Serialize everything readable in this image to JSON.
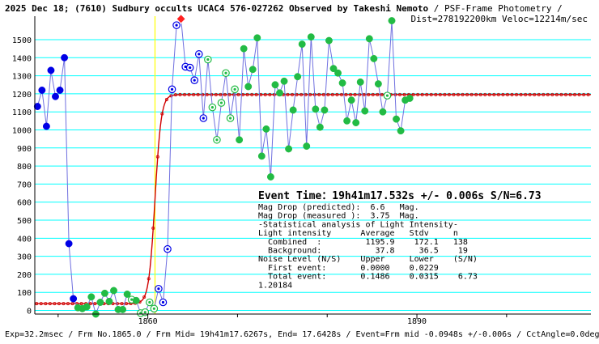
{
  "header": {
    "title_line1": "2025 Dec 18; (7610) Sudbury occults UCAC4 576-027262 Observed by Takeshi Nemoto",
    "title_line1_suffix": " / PSF-Frame Photometry /",
    "title_line2": "Dist=278192200km Veloc=12214m/sec"
  },
  "footer": {
    "text": "Exp=32.2msec / Frm No.1865.0 / Frm Mid= 19h41m17.6267s, End= 17.6428s / Event=Frm mid -0.0948s +/-0.006s / CctAngle=0.0deg"
  },
  "info": {
    "event_time": "Event Time：19h41m17.532s  +/- 0.006s  S/N=6.73",
    "lines": [
      "Mag Drop (predicted):  6.6   Mag.",
      "Mag Drop (measured ):  3.75  Mag.",
      "-Statistical analysis of Light Intensity-",
      "Light intensity      Average   Stdv     n",
      "  Combined  :         1195.9    172.1   138",
      "  Background:           37.8     36.5    19",
      "Noise Level (N/S)    Upper     Lower    (S/N)",
      "  First event:       0.0000    0.0229",
      "  Total event:       0.1486    0.0315    6.73",
      "1.20184"
    ]
  },
  "colors": {
    "grid": "#00ffff",
    "data_line": "#6f6fdf",
    "model": "#d00000",
    "event_line": "#ffff00",
    "blue_dot": "#0000e6",
    "green_dot": "#22bb44"
  },
  "chart_data": {
    "type": "line",
    "title": "2025 Dec 18; (7610) Sudbury occults UCAC4 576-027262 Observed by Takeshi Nemoto",
    "xlabel": "",
    "ylabel": "",
    "xlim": [
      1847.4,
      1909.4
    ],
    "ylim": [
      -20,
      1630
    ],
    "yticks": [
      0,
      100,
      200,
      300,
      400,
      500,
      600,
      700,
      800,
      900,
      1000,
      1100,
      1200,
      1300,
      1400,
      1500
    ],
    "xticks": [
      1860,
      1890
    ],
    "minor_xticks": [
      1850,
      1870,
      1880,
      1900
    ],
    "event_frame": 1860.8,
    "series": [
      {
        "points": [
          [
            1847.7,
            1130,
            "b"
          ],
          [
            1848.2,
            1220,
            "b"
          ],
          [
            1848.7,
            1020,
            "b"
          ],
          [
            1849.2,
            1330,
            "b"
          ],
          [
            1849.7,
            1185,
            "b"
          ],
          [
            1850.2,
            1220,
            "b"
          ],
          [
            1850.7,
            1400,
            "b"
          ],
          [
            1851.2,
            370,
            "b"
          ],
          [
            1851.7,
            65,
            "b"
          ],
          [
            1852.2,
            15,
            "g"
          ],
          [
            1852.7,
            10,
            "g"
          ],
          [
            1853.2,
            20,
            "g"
          ],
          [
            1853.7,
            75,
            "g"
          ],
          [
            1854.2,
            -20,
            "g"
          ],
          [
            1854.7,
            45,
            "g"
          ],
          [
            1855.2,
            95,
            "g"
          ],
          [
            1855.7,
            50,
            "g"
          ],
          [
            1856.2,
            110,
            "g"
          ],
          [
            1856.7,
            5,
            "g"
          ],
          [
            1857.2,
            5,
            "g"
          ],
          [
            1857.7,
            90,
            "g"
          ],
          [
            1858.2,
            60,
            "gh"
          ],
          [
            1858.7,
            55,
            "g"
          ],
          [
            1859.2,
            -15,
            "gh"
          ],
          [
            1859.7,
            -10,
            "gh"
          ],
          [
            1860.2,
            45,
            "gh"
          ],
          [
            1860.7,
            10,
            "gh"
          ],
          [
            1861.2,
            120,
            "bh"
          ],
          [
            1861.7,
            45,
            "bh"
          ],
          [
            1862.2,
            340,
            "bh"
          ],
          [
            1862.7,
            1225,
            "bh"
          ],
          [
            1863.2,
            1580,
            "bh"
          ],
          [
            1863.7,
            1615,
            "r"
          ],
          [
            1864.2,
            1350,
            "bh"
          ],
          [
            1864.7,
            1345,
            "bh"
          ],
          [
            1865.2,
            1275,
            "bh"
          ],
          [
            1865.7,
            1420,
            "bh"
          ],
          [
            1866.2,
            1065,
            "bh"
          ],
          [
            1866.7,
            1390,
            "gh"
          ],
          [
            1867.2,
            1125,
            "gh"
          ],
          [
            1867.7,
            945,
            "gh"
          ],
          [
            1868.2,
            1150,
            "gh"
          ],
          [
            1868.7,
            1315,
            "gh"
          ],
          [
            1869.2,
            1065,
            "gh"
          ],
          [
            1869.7,
            1225,
            "gh"
          ],
          [
            1870.2,
            945,
            "g"
          ],
          [
            1870.7,
            1450,
            "g"
          ],
          [
            1871.2,
            1240,
            "g"
          ],
          [
            1871.7,
            1335,
            "g"
          ],
          [
            1872.2,
            1510,
            "g"
          ],
          [
            1872.7,
            855,
            "g"
          ],
          [
            1873.2,
            1005,
            "g"
          ],
          [
            1873.7,
            740,
            "g"
          ],
          [
            1874.2,
            1250,
            "g"
          ],
          [
            1874.7,
            1205,
            "g"
          ],
          [
            1875.2,
            1270,
            "g"
          ],
          [
            1875.7,
            895,
            "g"
          ],
          [
            1876.2,
            1110,
            "g"
          ],
          [
            1876.7,
            1295,
            "g"
          ],
          [
            1877.2,
            1475,
            "g"
          ],
          [
            1877.7,
            910,
            "g"
          ],
          [
            1878.2,
            1515,
            "g"
          ],
          [
            1878.7,
            1115,
            "g"
          ],
          [
            1879.2,
            1015,
            "g"
          ],
          [
            1879.7,
            1110,
            "g"
          ],
          [
            1880.2,
            1495,
            "g"
          ],
          [
            1880.7,
            1340,
            "g"
          ],
          [
            1881.2,
            1315,
            "g"
          ],
          [
            1881.7,
            1260,
            "g"
          ],
          [
            1882.2,
            1050,
            "g"
          ],
          [
            1882.7,
            1165,
            "g"
          ],
          [
            1883.2,
            1040,
            "g"
          ],
          [
            1883.7,
            1265,
            "g"
          ],
          [
            1884.2,
            1105,
            "g"
          ],
          [
            1884.7,
            1505,
            "g"
          ],
          [
            1885.2,
            1395,
            "g"
          ],
          [
            1885.7,
            1255,
            "g"
          ],
          [
            1886.2,
            1100,
            "g"
          ],
          [
            1886.7,
            1190,
            "gh"
          ],
          [
            1887.2,
            1605,
            "g"
          ],
          [
            1887.7,
            1060,
            "g"
          ],
          [
            1888.2,
            995,
            "g"
          ],
          [
            1888.7,
            1165,
            "g"
          ],
          [
            1889.2,
            1175,
            "g"
          ]
        ]
      }
    ]
  }
}
